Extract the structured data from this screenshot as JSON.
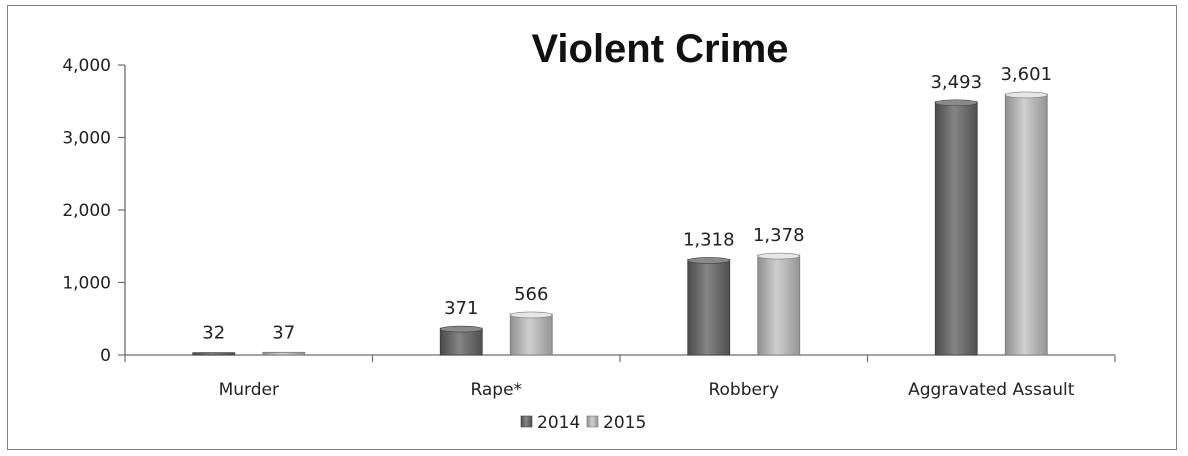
{
  "chart_data": {
    "type": "bar",
    "title": "Violent Crime",
    "categories": [
      "Murder",
      "Rape*",
      "Robbery",
      "Aggravated Assault"
    ],
    "series": [
      {
        "name": "2014",
        "values": [
          32,
          371,
          1318,
          3493
        ],
        "labels": [
          "32",
          "371",
          "1,318",
          "3,493"
        ],
        "color": "#6e6e6e"
      },
      {
        "name": "2015",
        "values": [
          37,
          566,
          1378,
          3601
        ],
        "labels": [
          "37",
          "566",
          "1,378",
          "3,601"
        ],
        "color": "#b3b3b3"
      }
    ],
    "ylim": [
      0,
      4000
    ],
    "yticks": [
      {
        "value": 0,
        "label": "0"
      },
      {
        "value": 1000,
        "label": "1,000"
      },
      {
        "value": 2000,
        "label": "2,000"
      },
      {
        "value": 3000,
        "label": "3,000"
      },
      {
        "value": 4000,
        "label": "4,000"
      }
    ],
    "grid": false,
    "legend_position": "bottom"
  }
}
